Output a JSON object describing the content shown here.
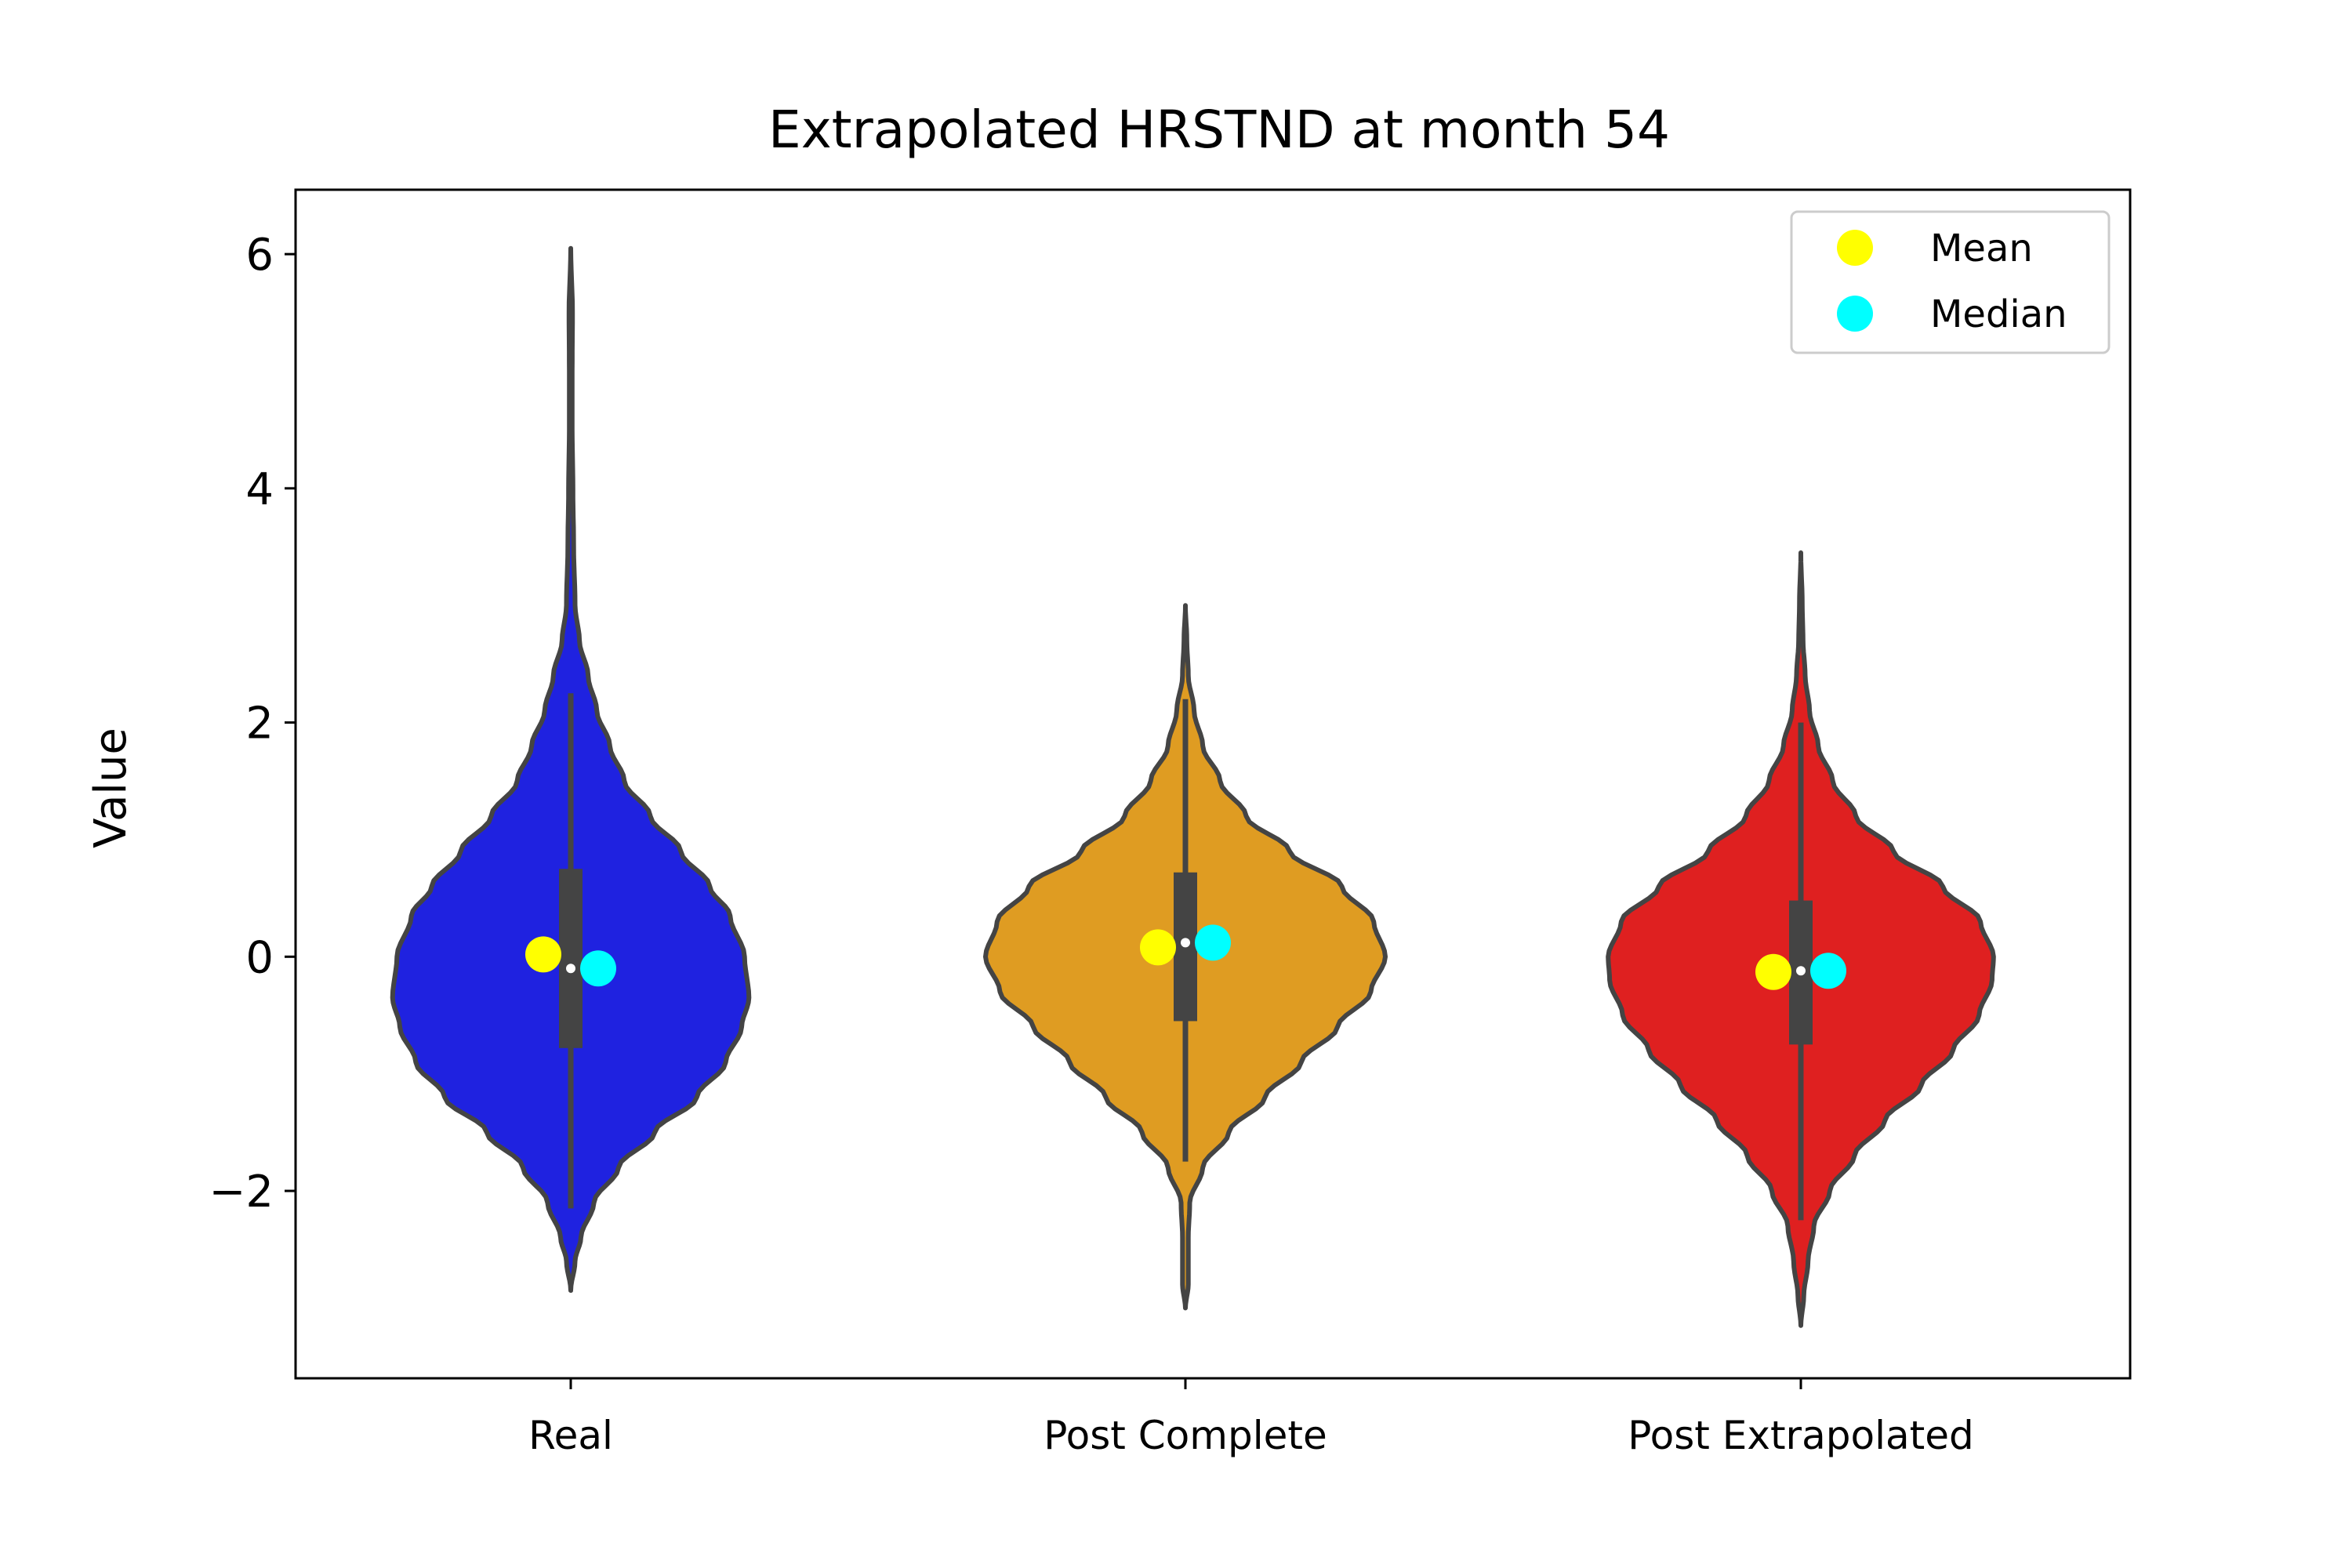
{
  "chart_data": {
    "type": "violin",
    "title": "Extrapolated HRSTND at month 54",
    "xlabel": "",
    "ylabel": "Value",
    "ylim": [
      -3.6,
      6.55
    ],
    "yticks": [
      -2,
      0,
      2,
      4,
      6
    ],
    "ytick_labels": [
      "−2",
      "0",
      "2",
      "4",
      "6"
    ],
    "categories": [
      "Real",
      "Post Complete",
      "Post Extrapolated"
    ],
    "legend": {
      "position": "top-right",
      "entries": [
        {
          "label": "Mean",
          "color": "#ffff00"
        },
        {
          "label": "Median",
          "color": "#00ffff"
        }
      ]
    },
    "series": [
      {
        "category": "Real",
        "color": "#1f22e0",
        "min": -2.85,
        "max": 6.05,
        "whisker_low": -2.15,
        "whisker_high": 2.25,
        "q1": -0.78,
        "q3": 0.75,
        "median": -0.1,
        "mean": 0.02,
        "density": [
          [
            -2.85,
            0.0
          ],
          [
            -2.6,
            0.03
          ],
          [
            -2.4,
            0.07
          ],
          [
            -2.1,
            0.16
          ],
          [
            -1.8,
            0.33
          ],
          [
            -1.5,
            0.58
          ],
          [
            -1.2,
            0.87
          ],
          [
            -0.9,
            1.07
          ],
          [
            -0.6,
            1.18
          ],
          [
            -0.35,
            1.23
          ],
          [
            0.0,
            1.2
          ],
          [
            0.35,
            1.1
          ],
          [
            0.6,
            0.96
          ],
          [
            0.9,
            0.76
          ],
          [
            1.2,
            0.55
          ],
          [
            1.5,
            0.37
          ],
          [
            1.8,
            0.27
          ],
          [
            2.1,
            0.18
          ],
          [
            2.4,
            0.12
          ],
          [
            2.7,
            0.06
          ],
          [
            3.0,
            0.03
          ],
          [
            3.5,
            0.02
          ],
          [
            4.0,
            0.015
          ],
          [
            4.5,
            0.01
          ],
          [
            5.0,
            0.01
          ],
          [
            5.5,
            0.012
          ],
          [
            6.05,
            0.0
          ]
        ]
      },
      {
        "category": "Post Complete",
        "color": "#df9c22",
        "min": -3.0,
        "max": 3.0,
        "whisker_low": -1.75,
        "whisker_high": 2.2,
        "q1": -0.55,
        "q3": 0.72,
        "median": 0.12,
        "mean": 0.08,
        "density": [
          [
            -3.0,
            0.0
          ],
          [
            -2.8,
            0.02
          ],
          [
            -2.4,
            0.02
          ],
          [
            -2.1,
            0.03
          ],
          [
            -1.8,
            0.12
          ],
          [
            -1.5,
            0.3
          ],
          [
            -1.2,
            0.55
          ],
          [
            -0.9,
            0.8
          ],
          [
            -0.6,
            1.05
          ],
          [
            -0.3,
            1.28
          ],
          [
            0.0,
            1.38
          ],
          [
            0.3,
            1.3
          ],
          [
            0.6,
            1.08
          ],
          [
            0.9,
            0.72
          ],
          [
            1.2,
            0.42
          ],
          [
            1.5,
            0.24
          ],
          [
            1.8,
            0.12
          ],
          [
            2.1,
            0.06
          ],
          [
            2.4,
            0.02
          ],
          [
            2.7,
            0.01
          ],
          [
            3.0,
            0.0
          ]
        ]
      },
      {
        "category": "Post Extrapolated",
        "color": "#df2020",
        "min": -3.15,
        "max": 3.45,
        "whisker_low": -2.25,
        "whisker_high": 2.0,
        "q1": -0.75,
        "q3": 0.48,
        "median": -0.12,
        "mean": -0.13,
        "density": [
          [
            -3.15,
            0.0
          ],
          [
            -2.9,
            0.02
          ],
          [
            -2.6,
            0.05
          ],
          [
            -2.3,
            0.09
          ],
          [
            -2.0,
            0.2
          ],
          [
            -1.7,
            0.37
          ],
          [
            -1.4,
            0.58
          ],
          [
            -1.1,
            0.83
          ],
          [
            -0.8,
            1.05
          ],
          [
            -0.5,
            1.23
          ],
          [
            -0.2,
            1.32
          ],
          [
            0.0,
            1.33
          ],
          [
            0.3,
            1.24
          ],
          [
            0.6,
            0.98
          ],
          [
            0.9,
            0.64
          ],
          [
            1.2,
            0.38
          ],
          [
            1.5,
            0.22
          ],
          [
            1.8,
            0.12
          ],
          [
            2.1,
            0.06
          ],
          [
            2.4,
            0.03
          ],
          [
            2.7,
            0.015
          ],
          [
            3.0,
            0.01
          ],
          [
            3.45,
            0.0
          ]
        ]
      }
    ]
  }
}
